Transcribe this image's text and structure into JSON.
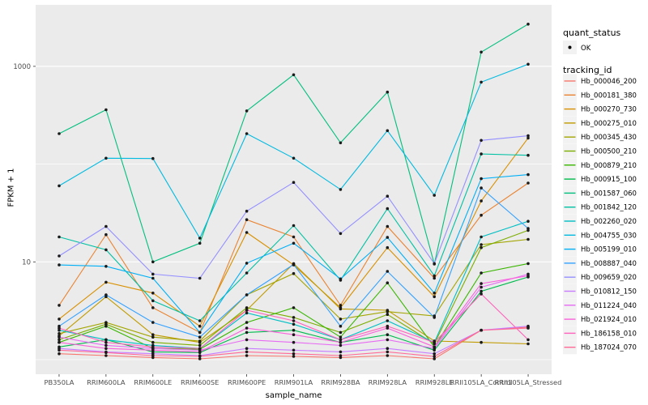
{
  "chart_data": {
    "type": "line",
    "title": "",
    "xlabel": "sample_name",
    "ylabel": "FPKM + 1",
    "y_scale": "log10",
    "ylim": [
      0.55,
      4000
    ],
    "grid": true,
    "y_ticks": [
      {
        "label": "10",
        "value": 10
      },
      {
        "label": "1000",
        "value": 1000
      }
    ],
    "y_gridlines_minor": [
      1,
      100
    ],
    "categories": [
      "PB350LA",
      "RRIM600LA",
      "RRIM600LE",
      "RRIM600SE",
      "RRIM600PE",
      "RRIM901LA",
      "RRIM928BA",
      "RRIM928LA",
      "RRIM928LE",
      "RRII105LA_Control",
      "RRII105LA_Stressed"
    ],
    "marker": {
      "shape": "point",
      "color": "#1a1a1a"
    },
    "legend": {
      "position": "right",
      "quant_status_title": "quant_status",
      "quant_status_items": [
        {
          "label": "OK",
          "marker": "point",
          "color": "#000000"
        }
      ],
      "tracking_id_title": "tracking_id"
    },
    "series": [
      {
        "name": "Hb_000046_200",
        "color": "#F8766D",
        "values": [
          1.15,
          1.1,
          1.05,
          1.02,
          1.1,
          1.08,
          1.05,
          1.1,
          1.02,
          2.0,
          2.15
        ]
      },
      {
        "name": "Hb_000181_380",
        "color": "#EA8331",
        "values": [
          3.6,
          19,
          3.4,
          1.9,
          27,
          18,
          3.6,
          23,
          6.8,
          30,
          64
        ]
      },
      {
        "name": "Hb_000270_730",
        "color": "#D89000",
        "values": [
          2.6,
          6.2,
          4.8,
          2.2,
          20,
          9.3,
          3.4,
          14,
          4.4,
          42,
          185
        ]
      },
      {
        "name": "Hb_000275_010",
        "color": "#C09B00",
        "values": [
          1.75,
          4.4,
          1.8,
          1.5,
          3.2,
          9.6,
          3.3,
          3.2,
          1.55,
          1.5,
          1.45
        ]
      },
      {
        "name": "Hb_000345_430",
        "color": "#A3A500",
        "values": [
          1.85,
          2.4,
          1.7,
          1.55,
          4.6,
          7.6,
          2.6,
          3.1,
          2.8,
          15,
          17
        ]
      },
      {
        "name": "Hb_000500_210",
        "color": "#7CAE00",
        "values": [
          1.6,
          2.3,
          1.5,
          1.4,
          3.4,
          2.7,
          1.9,
          2.9,
          1.45,
          14,
          21
        ]
      },
      {
        "name": "Hb_000879_210",
        "color": "#39B600",
        "values": [
          1.5,
          2.2,
          1.3,
          1.28,
          2.4,
          3.4,
          1.7,
          6.1,
          1.35,
          7.7,
          9.6
        ]
      },
      {
        "name": "Hb_000915_100",
        "color": "#00BB4E",
        "values": [
          1.35,
          1.6,
          1.2,
          1.18,
          1.9,
          2.0,
          1.5,
          1.8,
          1.25,
          5.0,
          7.0
        ]
      },
      {
        "name": "Hb_001587_060",
        "color": "#00BF7D",
        "values": [
          205,
          360,
          10,
          15.5,
          350,
          820,
          165,
          545,
          9.5,
          1400,
          2700
        ]
      },
      {
        "name": "Hb_001842_120",
        "color": "#00C1A3",
        "values": [
          18,
          13.3,
          4.0,
          2.5,
          7.7,
          23.5,
          6.5,
          35,
          7.2,
          127,
          123
        ]
      },
      {
        "name": "Hb_002260_020",
        "color": "#00BFC4",
        "values": [
          2.0,
          1.6,
          1.4,
          1.3,
          3.0,
          2.3,
          1.6,
          2.5,
          1.5,
          18,
          26
        ]
      },
      {
        "name": "Hb_004755_030",
        "color": "#00BAE0",
        "values": [
          60,
          115,
          114,
          17.5,
          205,
          115,
          55,
          220,
          48,
          690,
          1050
        ]
      },
      {
        "name": "Hb_005199_010",
        "color": "#00B0F6",
        "values": [
          9.3,
          9.0,
          6.8,
          1.9,
          9.7,
          15.5,
          6.7,
          17.8,
          4.8,
          71,
          78
        ]
      },
      {
        "name": "Hb_008887_040",
        "color": "#35A2FF",
        "values": [
          2.2,
          4.6,
          2.4,
          1.7,
          4.6,
          9.4,
          2.2,
          8.0,
          2.7,
          57,
          22
        ]
      },
      {
        "name": "Hb_009659_020",
        "color": "#9590FF",
        "values": [
          11.5,
          23,
          7.5,
          6.8,
          33,
          65,
          19.5,
          47,
          9.6,
          175,
          195
        ]
      },
      {
        "name": "Hb_010812_150",
        "color": "#C77CFF",
        "values": [
          1.3,
          1.2,
          1.15,
          1.1,
          1.3,
          1.25,
          1.2,
          1.3,
          1.15,
          2.0,
          2.2
        ]
      },
      {
        "name": "Hb_011224_040",
        "color": "#E76BF3",
        "values": [
          1.7,
          1.4,
          1.3,
          1.25,
          1.6,
          1.5,
          1.4,
          1.6,
          1.3,
          5.5,
          7.5
        ]
      },
      {
        "name": "Hb_021924_010",
        "color": "#FA62DB",
        "values": [
          1.5,
          1.3,
          1.25,
          1.2,
          2.1,
          1.8,
          1.5,
          2.1,
          1.35,
          6.0,
          7.2
        ]
      },
      {
        "name": "Hb_186158_010",
        "color": "#FF62BC",
        "values": [
          2.1,
          1.5,
          1.35,
          1.3,
          3.2,
          2.5,
          1.6,
          2.2,
          1.5,
          4.7,
          1.6
        ]
      },
      {
        "name": "Hb_187024_070",
        "color": "#FF6A98",
        "values": [
          1.25,
          1.18,
          1.1,
          1.08,
          1.2,
          1.15,
          1.1,
          1.2,
          1.08,
          2.0,
          2.1
        ]
      }
    ],
    "colors": {
      "panel_background": "#EBEBEB",
      "gridline": "#FFFFFF",
      "tick_text": "#4D4D4D",
      "key_background": "#F2F2F2"
    }
  }
}
